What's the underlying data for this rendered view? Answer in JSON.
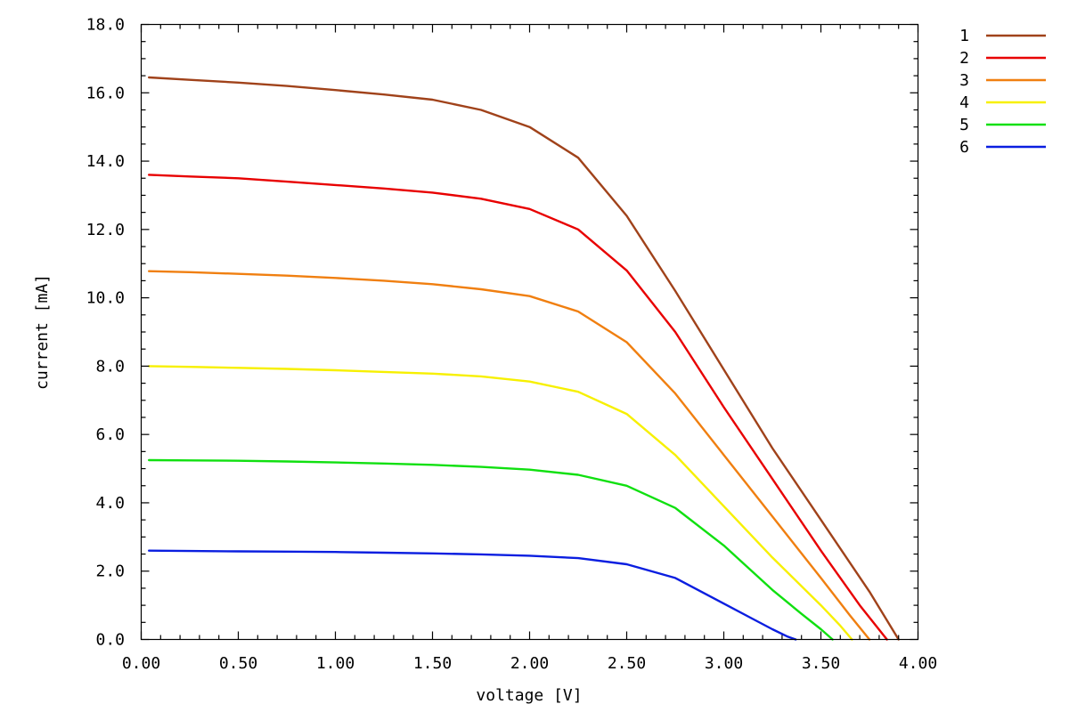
{
  "chart_data": {
    "type": "line",
    "title": "",
    "xlabel": "voltage [V]",
    "ylabel": "current [mA]",
    "xlim": [
      0.0,
      4.0
    ],
    "ylim": [
      0.0,
      18.0
    ],
    "xticks": [
      "0.00",
      "0.50",
      "1.00",
      "1.50",
      "2.00",
      "2.50",
      "3.00",
      "3.50",
      "4.00"
    ],
    "yticks": [
      "0.0",
      "2.0",
      "4.0",
      "6.0",
      "8.0",
      "10.0",
      "12.0",
      "14.0",
      "16.0",
      "18.0"
    ],
    "grid": false,
    "legend_position": "outside-top-right",
    "series": [
      {
        "name": "1",
        "color": "#a0421a",
        "x": [
          0.04,
          0.25,
          0.5,
          0.75,
          1.0,
          1.25,
          1.5,
          1.75,
          2.0,
          2.25,
          2.5,
          2.75,
          3.0,
          3.25,
          3.5,
          3.75,
          3.9
        ],
        "y": [
          16.45,
          16.38,
          16.3,
          16.2,
          16.08,
          15.95,
          15.8,
          15.5,
          15.0,
          14.1,
          12.4,
          10.2,
          7.9,
          5.6,
          3.5,
          1.4,
          0.0
        ]
      },
      {
        "name": "2",
        "color": "#e80000",
        "x": [
          0.04,
          0.25,
          0.5,
          0.75,
          1.0,
          1.25,
          1.5,
          1.75,
          2.0,
          2.25,
          2.5,
          2.75,
          3.0,
          3.25,
          3.5,
          3.7,
          3.84
        ],
        "y": [
          13.6,
          13.55,
          13.5,
          13.4,
          13.3,
          13.2,
          13.08,
          12.9,
          12.6,
          12.0,
          10.8,
          9.0,
          6.8,
          4.7,
          2.6,
          1.0,
          0.0
        ]
      },
      {
        "name": "3",
        "color": "#f07f10",
        "x": [
          0.04,
          0.25,
          0.5,
          0.75,
          1.0,
          1.25,
          1.5,
          1.75,
          2.0,
          2.25,
          2.5,
          2.75,
          3.0,
          3.25,
          3.5,
          3.65,
          3.75
        ],
        "y": [
          10.78,
          10.75,
          10.7,
          10.65,
          10.58,
          10.5,
          10.4,
          10.25,
          10.05,
          9.6,
          8.7,
          7.2,
          5.4,
          3.6,
          1.8,
          0.7,
          0.0
        ]
      },
      {
        "name": "4",
        "color": "#f7f000",
        "x": [
          0.04,
          0.25,
          0.5,
          0.75,
          1.0,
          1.25,
          1.5,
          1.75,
          2.0,
          2.25,
          2.5,
          2.75,
          3.0,
          3.25,
          3.5,
          3.6,
          3.66
        ],
        "y": [
          8.0,
          7.98,
          7.95,
          7.92,
          7.88,
          7.83,
          7.78,
          7.7,
          7.55,
          7.25,
          6.6,
          5.4,
          3.9,
          2.4,
          1.0,
          0.4,
          0.0
        ]
      },
      {
        "name": "5",
        "color": "#10e010",
        "x": [
          0.04,
          0.25,
          0.5,
          0.75,
          1.0,
          1.25,
          1.5,
          1.75,
          2.0,
          2.25,
          2.5,
          2.75,
          3.0,
          3.25,
          3.4,
          3.5,
          3.56
        ],
        "y": [
          5.25,
          5.24,
          5.23,
          5.21,
          5.18,
          5.15,
          5.11,
          5.05,
          4.97,
          4.82,
          4.5,
          3.85,
          2.75,
          1.45,
          0.75,
          0.3,
          0.0
        ]
      },
      {
        "name": "6",
        "color": "#0a1ee0",
        "x": [
          0.04,
          0.25,
          0.5,
          0.75,
          1.0,
          1.25,
          1.5,
          1.75,
          2.0,
          2.25,
          2.5,
          2.75,
          3.0,
          3.15,
          3.25,
          3.33,
          3.37
        ],
        "y": [
          2.6,
          2.59,
          2.58,
          2.57,
          2.56,
          2.54,
          2.52,
          2.49,
          2.45,
          2.38,
          2.2,
          1.8,
          1.05,
          0.6,
          0.3,
          0.08,
          0.0
        ]
      }
    ]
  }
}
